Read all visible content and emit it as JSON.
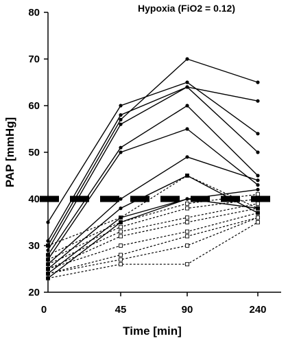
{
  "chart_data": {
    "type": "line",
    "title": "Hypoxia (FiO2 = 0.12)",
    "xlabel": "Time [min]",
    "ylabel": "PAP [mmHg]",
    "x_categories": [
      "0",
      "45",
      "90",
      "240"
    ],
    "y_ticks": [
      "20",
      "30",
      "40",
      "50",
      "60",
      "70",
      "80"
    ],
    "ylim": [
      20,
      80
    ],
    "threshold": 40,
    "grid": false,
    "legend": "none",
    "series_solid": [
      {
        "values": [
          35,
          60,
          65,
          54
        ]
      },
      {
        "values": [
          31,
          58,
          64,
          50
        ]
      },
      {
        "values": [
          30,
          57,
          70,
          65
        ]
      },
      {
        "values": [
          29,
          56,
          64,
          61
        ]
      },
      {
        "values": [
          28,
          51,
          60,
          45
        ]
      },
      {
        "values": [
          27,
          50,
          55,
          43
        ]
      },
      {
        "values": [
          26,
          40,
          49,
          44
        ]
      },
      {
        "values": [
          25,
          38,
          45,
          37
        ]
      },
      {
        "values": [
          24,
          36,
          40,
          42
        ]
      },
      {
        "values": [
          23,
          35,
          40,
          38
        ]
      }
    ],
    "series_dashed": [
      {
        "values": [
          30,
          36,
          45,
          38
        ]
      },
      {
        "values": [
          28,
          35,
          39,
          41
        ]
      },
      {
        "values": [
          27,
          34,
          38,
          40
        ]
      },
      {
        "values": [
          26,
          33,
          36,
          39
        ]
      },
      {
        "values": [
          25,
          32,
          35,
          38
        ]
      },
      {
        "values": [
          25,
          30,
          33,
          37
        ]
      },
      {
        "values": [
          24,
          28,
          32,
          36
        ]
      },
      {
        "values": [
          24,
          27,
          30,
          36
        ]
      },
      {
        "values": [
          23,
          26,
          26,
          35
        ]
      }
    ]
  }
}
